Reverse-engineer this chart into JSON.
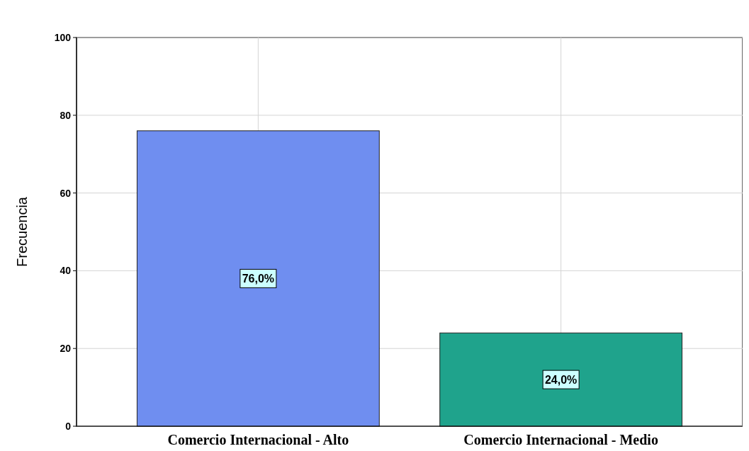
{
  "chart_data": {
    "type": "bar",
    "ylabel": "Frecuencia",
    "categories": [
      "Comercio Internacional - Alto",
      "Comercio Internacional - Medio"
    ],
    "values": [
      76,
      24
    ],
    "colors": [
      "#6f8ef0",
      "#1fa38c"
    ],
    "value_labels": [
      "76,0%",
      "24,0%"
    ],
    "ylim": [
      0,
      100
    ],
    "yticks": [
      0,
      20,
      40,
      60,
      80,
      100
    ],
    "grid": true
  }
}
